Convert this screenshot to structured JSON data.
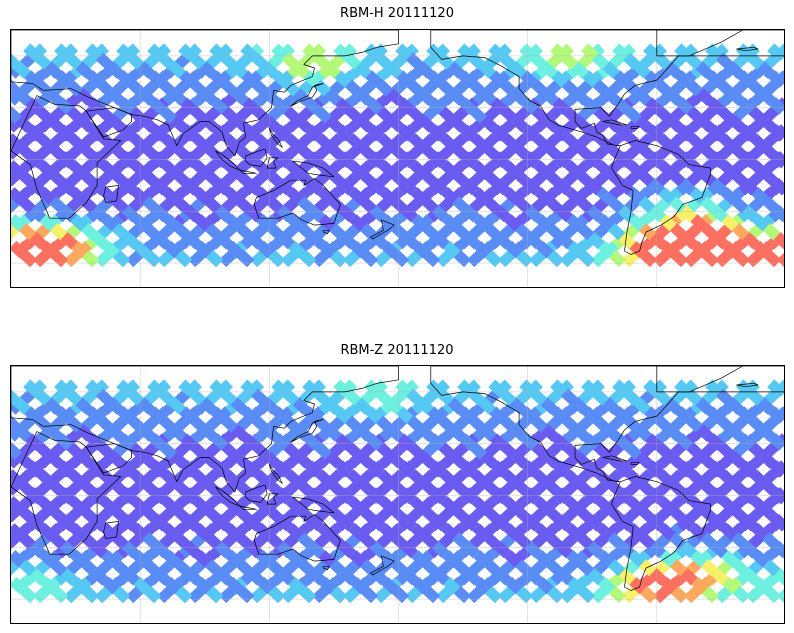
{
  "panels": [
    {
      "title": "RBM-H 20111120",
      "colormap": [
        "#6a5cf0",
        "#5a8cf6",
        "#56c8f4",
        "#6ef0e0",
        "#b4f87a",
        "#f6f06a",
        "#fca85e",
        "#fb7060"
      ],
      "hotspots": [
        {
          "lon": 5,
          "lat": -55,
          "strength": 1.0
        },
        {
          "lon": 20,
          "lat": -48,
          "strength": 0.55
        },
        {
          "lon": 305,
          "lat": -52,
          "strength": 1.0
        },
        {
          "lon": 325,
          "lat": -50,
          "strength": 0.9
        },
        {
          "lon": 315,
          "lat": -32,
          "strength": 0.45
        },
        {
          "lon": 140,
          "lat": 55,
          "strength": 0.35
        },
        {
          "lon": 260,
          "lat": 58,
          "strength": 0.3
        }
      ]
    },
    {
      "title": "RBM-Z 20111120",
      "colormap": [
        "#6a5cf0",
        "#5a8cf6",
        "#56c8f4",
        "#6ef0e0",
        "#b4f87a",
        "#f6f06a",
        "#fca85e",
        "#fb7060"
      ],
      "hotspots": [
        {
          "lon": 300,
          "lat": -52,
          "strength": 0.7
        },
        {
          "lon": 320,
          "lat": -45,
          "strength": 0.45
        },
        {
          "lon": 5,
          "lat": -52,
          "strength": 0.25
        },
        {
          "lon": 170,
          "lat": 58,
          "strength": 0.2
        }
      ]
    }
  ],
  "map": {
    "lon_range": [
      0,
      360
    ],
    "lat_range": [
      -75,
      75
    ],
    "track_lat_range": [
      -60,
      60
    ],
    "gridlines": true,
    "coastlines": true
  }
}
